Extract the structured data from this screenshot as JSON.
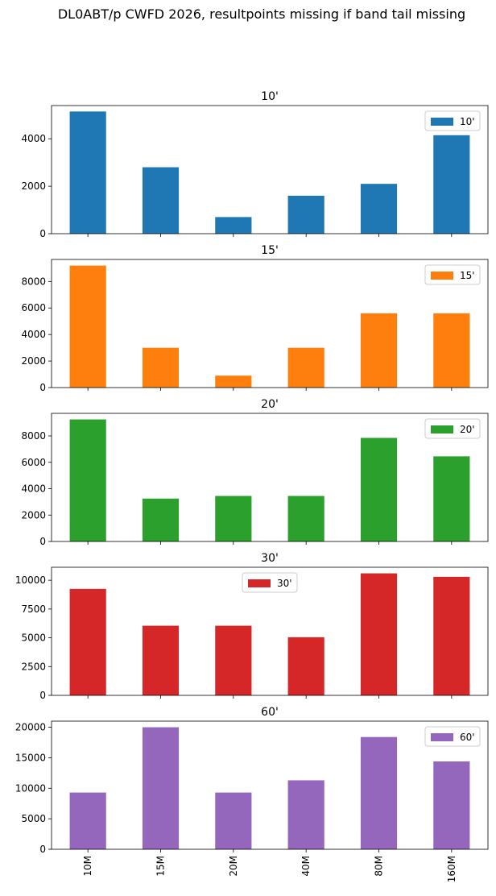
{
  "suptitle": "DL0ABT/p CWFD 2026, resultpoints missing if band tail missing",
  "chart_data": [
    {
      "type": "bar",
      "title": "10'",
      "categories": [
        "10M",
        "15M",
        "20M",
        "40M",
        "80M",
        "160M"
      ],
      "series": [
        {
          "name": "10'",
          "values": [
            5150,
            2800,
            700,
            1600,
            2100,
            4150
          ]
        }
      ],
      "color": "#1f77b4",
      "ylim": [
        0,
        5400
      ],
      "yticks": [
        0,
        2000,
        4000
      ],
      "legend": "top-right",
      "grid": false
    },
    {
      "type": "bar",
      "title": "15'",
      "categories": [
        "10M",
        "15M",
        "20M",
        "40M",
        "80M",
        "160M"
      ],
      "series": [
        {
          "name": "15'",
          "values": [
            9200,
            3000,
            900,
            3000,
            5600,
            5600
          ]
        }
      ],
      "color": "#ff7f0e",
      "ylim": [
        0,
        9660
      ],
      "yticks": [
        0,
        2000,
        4000,
        6000,
        8000
      ],
      "legend": "top-right",
      "grid": false
    },
    {
      "type": "bar",
      "title": "20'",
      "categories": [
        "10M",
        "15M",
        "20M",
        "40M",
        "80M",
        "160M"
      ],
      "series": [
        {
          "name": "20'",
          "values": [
            9250,
            3250,
            3450,
            3450,
            7850,
            6450
          ]
        }
      ],
      "color": "#2ca02c",
      "ylim": [
        0,
        9710
      ],
      "yticks": [
        0,
        2000,
        4000,
        6000,
        8000
      ],
      "legend": "top-right",
      "grid": false
    },
    {
      "type": "bar",
      "title": "30'",
      "categories": [
        "10M",
        "15M",
        "20M",
        "40M",
        "80M",
        "160M"
      ],
      "series": [
        {
          "name": "30'",
          "values": [
            9250,
            6050,
            6050,
            5050,
            10600,
            10300
          ]
        }
      ],
      "color": "#d62728",
      "ylim": [
        0,
        11130
      ],
      "yticks": [
        0,
        2500,
        5000,
        7500,
        10000
      ],
      "legend": "top-center",
      "grid": false
    },
    {
      "type": "bar",
      "title": "60'",
      "categories": [
        "10M",
        "15M",
        "20M",
        "40M",
        "80M",
        "160M"
      ],
      "series": [
        {
          "name": "60'",
          "values": [
            9300,
            20000,
            9300,
            11300,
            18400,
            14400
          ]
        }
      ],
      "color": "#9467bd",
      "ylim": [
        0,
        21000
      ],
      "yticks": [
        0,
        5000,
        10000,
        15000,
        20000
      ],
      "legend": "top-right",
      "grid": false
    }
  ]
}
